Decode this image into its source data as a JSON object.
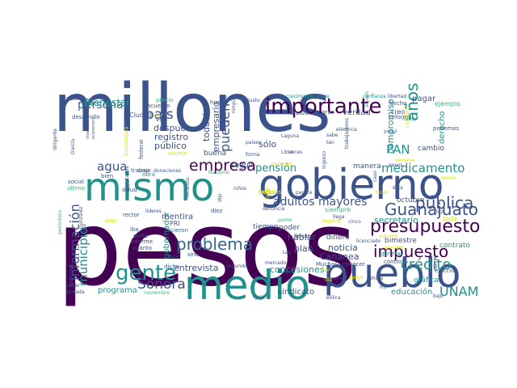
{
  "image": {
    "kind": "word cloud",
    "background": "#ffffff"
  },
  "palette": {
    "dark_purple": "#440154",
    "indigo": "#3b528b",
    "blue": "#31688e",
    "teal": "#21918c",
    "green": "#35b779",
    "lime": "#90d743",
    "yellow": "#d8e219"
  },
  "words": [
    {
      "text": "millones",
      "color": "#3b528b"
    },
    {
      "text": "pesos",
      "color": "#440154"
    },
    {
      "text": "mismo",
      "color": "#21918c"
    },
    {
      "text": "gobierno",
      "color": "#3b528b"
    },
    {
      "text": "medio",
      "color": "#21918c"
    },
    {
      "text": "pueblo",
      "color": "#3b528b"
    },
    {
      "text": "importante",
      "color": "#440154"
    },
    {
      "text": "presupuesto",
      "color": "#440154"
    },
    {
      "text": "impuesto",
      "color": "#440154"
    },
    {
      "text": "crédito",
      "color": "#21918c"
    },
    {
      "text": "gente",
      "color": "#21918c"
    },
    {
      "text": "problema",
      "color": "#31688e"
    },
    {
      "text": "pública",
      "color": "#3b528b"
    },
    {
      "text": "Guanajuato",
      "color": "#3b528b"
    },
    {
      "text": "medicamento",
      "color": "#21918c"
    },
    {
      "text": "años",
      "color": "#21918c"
    },
    {
      "text": "empresa",
      "color": "#440154"
    },
    {
      "text": "persona",
      "color": "#31688e"
    },
    {
      "text": "país",
      "color": "#3b528b"
    },
    {
      "text": "agua",
      "color": "#3b528b"
    },
    {
      "text": "información",
      "color": "#3b528b"
    },
    {
      "text": "adultos mayores",
      "color": "#3b528b"
    },
    {
      "text": "pueden",
      "color": "#3b528b"
    },
    {
      "text": "Sonora",
      "color": "#3b528b"
    },
    {
      "text": "UNAM",
      "color": "#21918c"
    },
    {
      "text": "municipio",
      "color": "#21918c"
    },
    {
      "text": "PAN",
      "color": "#21918c"
    },
    {
      "text": "pensión",
      "color": "#21918c"
    },
    {
      "text": "sólo",
      "color": "#3b528b"
    },
    {
      "text": "Bienestar",
      "color": "#21918c"
    },
    {
      "text": "después",
      "color": "#3b528b"
    },
    {
      "text": "público",
      "color": "#3b528b"
    },
    {
      "text": "registro",
      "color": "#3b528b"
    },
    {
      "text": "empresario",
      "color": "#3b528b"
    },
    {
      "text": "todavía",
      "color": "#3b528b"
    },
    {
      "text": "compromiso",
      "color": "#21918c"
    },
    {
      "text": "secretario",
      "color": "#21918c"
    },
    {
      "text": "noticia",
      "color": "#3b528b"
    },
    {
      "text": "hablar",
      "color": "#3b528b"
    },
    {
      "text": "plan",
      "color": "#3b528b"
    },
    {
      "text": "Cananea",
      "color": "#3b528b"
    },
    {
      "text": "entrevista",
      "color": "#3b528b"
    },
    {
      "text": "concesiones",
      "color": "#21918c"
    },
    {
      "text": "educación",
      "color": "#21918c"
    },
    {
      "text": "sindicato",
      "color": "#3b528b"
    },
    {
      "text": "programa",
      "color": "#21918c"
    },
    {
      "text": "gobernador",
      "color": "#21918c"
    },
    {
      "text": "mentira",
      "color": "#3b528b"
    },
    {
      "text": "pagar",
      "color": "#3b528b"
    },
    {
      "text": "derecho",
      "color": "#21918c"
    },
    {
      "text": "verdad",
      "color": "#3b528b"
    },
    {
      "text": "cambio",
      "color": "#3b528b"
    },
    {
      "text": "manera",
      "color": "#3b528b"
    },
    {
      "text": "octubre",
      "color": "#3b528b"
    },
    {
      "text": "contrato",
      "color": "#21918c"
    },
    {
      "text": "bimestre",
      "color": "#3b528b"
    },
    {
      "text": "dinero",
      "color": "#3b528b"
    },
    {
      "text": "gráfica",
      "color": "#21918c"
    },
    {
      "text": "tiempo",
      "color": "#3b528b"
    },
    {
      "text": "poder",
      "color": "#3b528b"
    },
    {
      "text": "seguir",
      "color": "#3b528b"
    },
    {
      "text": "buena",
      "color": "#3b528b"
    },
    {
      "text": "radio",
      "color": "#3b528b"
    },
    {
      "text": "acuerdo",
      "color": "#3b528b"
    },
    {
      "text": "desarrollo",
      "color": "#3b528b"
    },
    {
      "text": "Ciudad",
      "color": "#3b528b"
    },
    {
      "text": "hizo",
      "color": "#3b528b"
    },
    {
      "text": "justo",
      "color": "#3b528b"
    },
    {
      "text": "crecimiento viene",
      "color": "#21918c"
    },
    {
      "text": "confianza",
      "color": "#21918c"
    },
    {
      "text": "libertad",
      "color": "#3b528b"
    },
    {
      "text": "hecho",
      "color": "#3b528b"
    },
    {
      "text": "ejemplo",
      "color": "#35b779"
    },
    {
      "text": "creo",
      "color": "#3b528b"
    },
    {
      "text": "reforma",
      "color": "#3b528b"
    },
    {
      "text": "podemos",
      "color": "#3b528b"
    },
    {
      "text": "gran",
      "color": "#3b528b"
    },
    {
      "text": "Krauze",
      "color": "#3b528b"
    },
    {
      "text": "Laguna",
      "color": "#3b528b"
    },
    {
      "text": "Libro",
      "color": "#3b528b"
    },
    {
      "text": "Ingreso",
      "color": "#3b528b"
    },
    {
      "text": "trabajadores",
      "color": "#3b528b"
    },
    {
      "text": "trabajo",
      "color": "#3b528b"
    },
    {
      "text": "bien",
      "color": "#3b528b"
    },
    {
      "text": "social",
      "color": "#3b528b"
    },
    {
      "text": "último",
      "color": "#35b779"
    },
    {
      "text": "salud",
      "color": "#3b528b"
    },
    {
      "text": "cosa",
      "color": "#3b528b"
    },
    {
      "text": "donaciones",
      "color": "#3b528b"
    },
    {
      "text": "Nacional",
      "color": "#35b779"
    },
    {
      "text": "niños",
      "color": "#3b528b"
    },
    {
      "text": "rector",
      "color": "#3b528b"
    },
    {
      "text": "iba",
      "color": "#3b528b"
    },
    {
      "text": "parte",
      "color": "#3b528b"
    },
    {
      "text": "informe",
      "color": "#3b528b"
    },
    {
      "text": "cuánto",
      "color": "#3b528b"
    },
    {
      "text": "PRI",
      "color": "#3b528b"
    },
    {
      "text": "hicieron",
      "color": "#31688e"
    },
    {
      "text": "sino",
      "color": "#3b528b"
    },
    {
      "text": "dicho",
      "color": "#3b528b"
    },
    {
      "text": "Ley",
      "color": "#3b528b"
    },
    {
      "text": "mercado",
      "color": "#3b528b"
    },
    {
      "text": "segundo",
      "color": "#3b528b"
    },
    {
      "text": "Muchas",
      "color": "#3b528b"
    },
    {
      "text": "conocer",
      "color": "#3b528b"
    },
    {
      "text": "general",
      "color": "#21918c"
    },
    {
      "text": "elección",
      "color": "#3b528b"
    },
    {
      "text": "control",
      "color": "#3b528b"
    },
    {
      "text": "cinco",
      "color": "#3b528b"
    },
    {
      "text": "Diputados",
      "color": "#3b528b"
    },
    {
      "text": "mensaje",
      "color": "#3b528b"
    },
    {
      "text": "saber",
      "color": "#3b528b"
    },
    {
      "text": "privada",
      "color": "#3b528b"
    },
    {
      "text": "noviembre",
      "color": "#35b779"
    },
    {
      "text": "llevar",
      "color": "#3b528b"
    },
    {
      "text": "punto",
      "color": "#35b779"
    },
    {
      "text": "diez",
      "color": "#3b528b"
    },
    {
      "text": "siempre",
      "color": "#35b779"
    },
    {
      "text": "toda",
      "color": "#d8e219"
    },
    {
      "text": "vez",
      "color": "#3b528b"
    },
    {
      "text": "precio",
      "color": "#35b779"
    },
    {
      "text": "asunto",
      "color": "#d8e219"
    },
    {
      "text": "opinión",
      "color": "#d8e219"
    },
    {
      "text": "dar",
      "color": "#d8e219"
    },
    {
      "text": "federal",
      "color": "#3b528b"
    },
    {
      "text": "Guadalajara",
      "color": "#d8e219"
    },
    {
      "text": "García",
      "color": "#3b528b"
    },
    {
      "text": "dirigente",
      "color": "#3b528b"
    },
    {
      "text": "inversión",
      "color": "#3b528b"
    },
    {
      "text": "económico",
      "color": "#3b528b"
    },
    {
      "text": "Díaz",
      "color": "#3b528b"
    },
    {
      "text": "González",
      "color": "#3b528b"
    },
    {
      "text": "periodista",
      "color": "#35b779"
    },
    {
      "text": "yaqui",
      "color": "#3b528b"
    },
    {
      "text": "grandes",
      "color": "#d8e219"
    },
    {
      "text": "licenciado",
      "color": "#3b528b"
    },
    {
      "text": "eólica",
      "color": "#3b528b"
    },
    {
      "text": "lugar",
      "color": "#3b528b"
    },
    {
      "text": "nueva",
      "color": "#3b528b"
    },
    {
      "text": "cerrar",
      "color": "#3b528b"
    },
    {
      "text": "algunos",
      "color": "#d8e219"
    },
    {
      "text": "denuncia",
      "color": "#3b528b"
    },
    {
      "text": "forma",
      "color": "#3b528b"
    },
    {
      "text": "países",
      "color": "#3b528b"
    },
    {
      "text": "ningún",
      "color": "#3b528b"
    },
    {
      "text": "fue",
      "color": "#3b528b"
    },
    {
      "text": "nadie",
      "color": "#21918c"
    },
    {
      "text": "sabe",
      "color": "#3b528b"
    },
    {
      "text": "parece",
      "color": "#3b528b"
    },
    {
      "text": "eléctrica",
      "color": "#3b528b"
    },
    {
      "text": "favor",
      "color": "#d8e219"
    },
    {
      "text": "mayor",
      "color": "#3b528b"
    },
    {
      "text": "siguen",
      "color": "#21918c"
    },
    {
      "text": "caso",
      "color": "#3b528b"
    },
    {
      "text": "tan",
      "color": "#3b528b"
    },
    {
      "text": "deuda",
      "color": "#d8e219"
    },
    {
      "text": "campaña",
      "color": "#d8e219"
    },
    {
      "text": "dijo",
      "color": "#3b528b"
    },
    {
      "text": "recursos",
      "color": "#3b528b"
    },
    {
      "text": "líderes",
      "color": "#3b528b"
    },
    {
      "text": "debe",
      "color": "#d8e219"
    },
    {
      "text": "negocio",
      "color": "#d8e219"
    },
    {
      "text": "apoyo",
      "color": "#d8e219"
    },
    {
      "text": "mil",
      "color": "#3b528b"
    },
    {
      "text": "ésta",
      "color": "#3b528b"
    },
    {
      "text": "ahora",
      "color": "#3b528b"
    },
    {
      "text": "tener",
      "color": "#d8e219"
    },
    {
      "text": "llega",
      "color": "#3b528b"
    },
    {
      "text": "veces",
      "color": "#3b528b"
    },
    {
      "text": "leer",
      "color": "#d8e219"
    },
    {
      "text": "semana",
      "color": "#d8e219"
    },
    {
      "text": "igual",
      "color": "#3b528b"
    },
    {
      "text": "día",
      "color": "#d8e219"
    },
    {
      "text": "pesos",
      "color": "#3b528b"
    },
    {
      "text": "bajo",
      "color": "#3b528b"
    },
    {
      "text": "luz",
      "color": "#3b528b"
    },
    {
      "text": "obra",
      "color": "#21918c"
    },
    {
      "text": "Luis",
      "color": "#d8e219"
    },
    {
      "text": "precios",
      "color": "#d8e219"
    },
    {
      "text": "cada",
      "color": "#d8e219"
    }
  ]
}
